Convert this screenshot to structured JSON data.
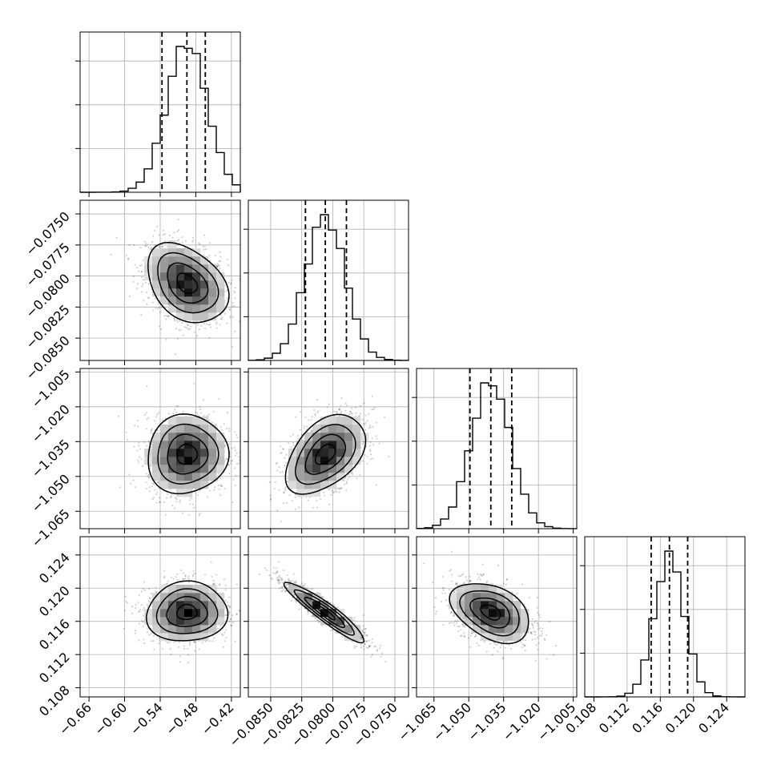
{
  "chart_data": {
    "type": "corner",
    "grid": true,
    "parameters": [
      {
        "range": [
          -0.675,
          -0.405
        ],
        "center": -0.495,
        "sigma": 0.034,
        "q": [
          -0.537,
          -0.495,
          -0.464
        ],
        "xticks": [
          "−0.66",
          "−0.60",
          "−0.54",
          "−0.48",
          "−0.42"
        ],
        "xtick_values": [
          -0.66,
          -0.6,
          -0.54,
          -0.48,
          -0.42
        ],
        "yticks": [],
        "ytick_values": []
      },
      {
        "range": [
          -0.0868,
          -0.0739
        ],
        "center": -0.0806,
        "sigma": 0.0016,
        "q": [
          -0.0822,
          -0.0806,
          -0.0789
        ],
        "xticks": [
          "−0.0850",
          "−0.0825",
          "−0.0800",
          "−0.0775",
          "−0.0750"
        ],
        "xtick_values": [
          -0.085,
          -0.0825,
          -0.08,
          -0.0775,
          -0.075
        ],
        "yticks": [
          "−0.0750",
          "−0.0775",
          "−0.0800",
          "−0.0825",
          "−0.0850"
        ],
        "ytick_values": [
          -0.075,
          -0.0775,
          -0.08,
          -0.0825,
          -0.085
        ]
      },
      {
        "range": [
          -1.0725,
          -1.0035
        ],
        "center": -1.0405,
        "sigma": 0.0085,
        "q": [
          -1.0495,
          -1.0405,
          -1.0315
        ],
        "xticks": [
          "−1.065",
          "−1.050",
          "−1.035",
          "−1.020",
          "−1.005"
        ],
        "xtick_values": [
          -1.065,
          -1.05,
          -1.035,
          -1.02,
          -1.005
        ],
        "yticks": [
          "−1.005",
          "−1.020",
          "−1.035",
          "−1.050",
          "−1.065"
        ],
        "ytick_values": [
          -1.005,
          -1.02,
          -1.035,
          -1.05,
          -1.065
        ]
      },
      {
        "range": [
          0.1069,
          0.1262
        ],
        "center": 0.1171,
        "sigma": 0.0018,
        "q": [
          0.1149,
          0.1171,
          0.1193
        ],
        "xticks": [
          "0.108",
          "0.112",
          "0.116",
          "0.120",
          "0.124"
        ],
        "xtick_values": [
          0.108,
          0.112,
          0.116,
          0.12,
          0.124
        ],
        "yticks": [
          "0.124",
          "0.120",
          "0.116",
          "0.112",
          "0.108"
        ],
        "ytick_values": [
          0.124,
          0.12,
          0.116,
          0.112,
          0.108
        ]
      }
    ],
    "correlations": [
      [
        1.0,
        -0.35,
        0.05,
        0.05
      ],
      [
        -0.35,
        1.0,
        0.45,
        -0.93
      ],
      [
        0.05,
        0.45,
        1.0,
        -0.4
      ],
      [
        0.05,
        -0.93,
        -0.4,
        1.0
      ]
    ],
    "contour_levels_sigma": [
      0.5,
      1.0,
      1.5,
      2.0
    ]
  }
}
